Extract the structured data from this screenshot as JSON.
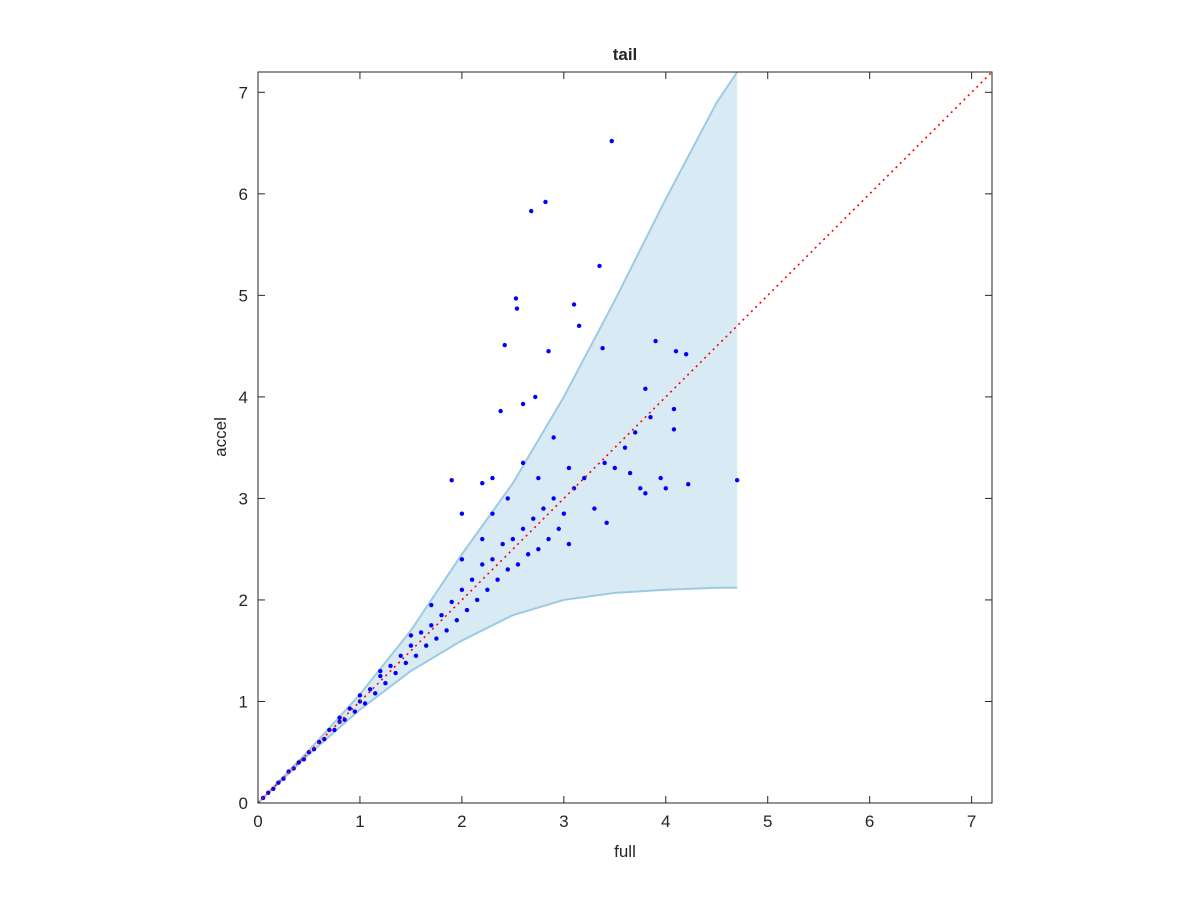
{
  "chart_data": {
    "type": "scatter",
    "title": "tail",
    "x_label": "full",
    "y_label": "accel",
    "xlim": [
      0,
      7.2
    ],
    "ylim": [
      0,
      7.2
    ],
    "xticks": [
      0,
      1,
      2,
      3,
      4,
      5,
      6,
      7
    ],
    "yticks": [
      0,
      1,
      2,
      3,
      4,
      5,
      6,
      7
    ],
    "series": [
      {
        "type": "band",
        "color": "#9ecae1",
        "x": [
          0,
          0.5,
          1,
          1.5,
          2,
          2.5,
          3,
          3.5,
          4,
          4.5,
          4.7
        ],
        "upper": [
          0,
          0.52,
          1.07,
          1.7,
          2.45,
          3.15,
          4.0,
          4.95,
          5.95,
          6.9,
          7.2
        ],
        "lower": [
          0,
          0.48,
          0.92,
          1.3,
          1.6,
          1.85,
          2.0,
          2.07,
          2.1,
          2.12,
          2.12
        ]
      },
      {
        "type": "line",
        "color": "#ff0000",
        "dash": "dotted",
        "x": [
          0,
          7.2
        ],
        "y": [
          0,
          7.2
        ]
      },
      {
        "type": "scatter",
        "color": "#0000ff",
        "x": [
          0.05,
          0.1,
          0.15,
          0.2,
          0.25,
          0.3,
          0.35,
          0.4,
          0.45,
          0.5,
          0.55,
          0.6,
          0.65,
          0.7,
          0.75,
          0.8,
          0.85,
          0.9,
          0.95,
          1.0,
          1.05,
          1.1,
          1.15,
          1.2,
          1.25,
          1.3,
          1.35,
          1.4,
          1.45,
          1.5,
          1.55,
          1.6,
          1.65,
          1.7,
          1.75,
          1.8,
          1.85,
          1.9,
          1.95,
          2.0,
          2.05,
          2.1,
          2.15,
          2.2,
          2.25,
          2.3,
          2.35,
          2.4,
          2.45,
          2.5,
          2.55,
          2.6,
          2.65,
          2.7,
          2.75,
          2.8,
          2.85,
          2.9,
          2.95,
          3.0,
          3.05,
          3.1,
          3.2,
          3.3,
          3.4,
          3.5,
          3.6,
          3.65,
          3.7,
          3.85,
          3.95,
          4.0,
          1.5,
          1.7,
          2.0,
          2.2,
          2.3,
          2.45,
          2.6,
          2.75,
          1.2,
          1.0,
          0.8,
          2.2,
          2.3,
          2.9,
          3.05,
          3.47,
          2.82,
          2.68,
          3.35,
          2.53,
          2.54,
          3.1,
          3.15,
          2.42,
          2.85,
          3.38,
          3.9,
          4.1,
          4.2,
          2.38,
          2.72,
          2.6,
          3.8,
          4.08,
          4.08,
          4.7,
          4.22,
          3.75,
          3.8,
          3.42,
          1.9,
          2.0
        ],
        "y": [
          0.05,
          0.1,
          0.14,
          0.2,
          0.24,
          0.31,
          0.34,
          0.4,
          0.43,
          0.5,
          0.53,
          0.6,
          0.63,
          0.72,
          0.72,
          0.8,
          0.82,
          0.93,
          0.9,
          1.0,
          0.98,
          1.12,
          1.08,
          1.25,
          1.18,
          1.35,
          1.28,
          1.45,
          1.38,
          1.55,
          1.45,
          1.68,
          1.55,
          1.75,
          1.62,
          1.85,
          1.7,
          1.98,
          1.8,
          2.1,
          1.9,
          2.2,
          2.0,
          2.35,
          2.1,
          2.4,
          2.2,
          2.55,
          2.3,
          2.6,
          2.35,
          2.7,
          2.45,
          2.8,
          2.5,
          2.9,
          2.6,
          3.0,
          2.7,
          2.85,
          2.55,
          3.1,
          3.2,
          2.9,
          3.35,
          3.3,
          3.5,
          3.25,
          3.65,
          3.8,
          3.2,
          3.1,
          1.65,
          1.95,
          2.4,
          2.6,
          2.85,
          3.0,
          3.35,
          3.2,
          1.3,
          1.06,
          0.84,
          3.15,
          3.2,
          3.6,
          3.3,
          6.52,
          5.92,
          5.83,
          5.29,
          4.97,
          4.87,
          4.91,
          4.7,
          4.51,
          4.45,
          4.48,
          4.55,
          4.45,
          4.42,
          3.86,
          4.0,
          3.93,
          4.08,
          3.88,
          3.68,
          3.18,
          3.14,
          3.1,
          3.05,
          2.76,
          3.18,
          2.85
        ]
      }
    ]
  }
}
